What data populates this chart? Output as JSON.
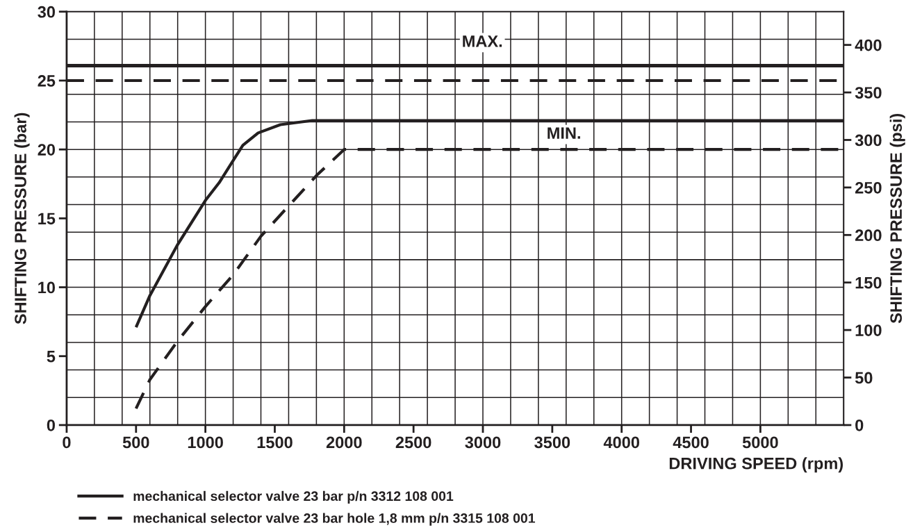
{
  "chart_data": {
    "type": "line",
    "xlabel": "DRIVING SPEED (rpm)",
    "ylabel": "SHIFTING PRESSURE (bar)",
    "y2label": "SHIFTING PRESSURE (psi)",
    "xlim": [
      0,
      5600
    ],
    "xticks": [
      0,
      500,
      1000,
      1500,
      2000,
      2500,
      3000,
      3500,
      4000,
      4500,
      5000,
      {
        "value": 200,
        "label": null
      },
      {
        "value": 400,
        "label": null
      },
      {
        "value": 600,
        "label": null
      },
      {
        "value": 800,
        "label": null
      },
      {
        "value": 1200,
        "label": null
      },
      {
        "value": 1400,
        "label": null
      },
      {
        "value": 1600,
        "label": null
      },
      {
        "value": 1800,
        "label": null
      },
      {
        "value": 2200,
        "label": null
      },
      {
        "value": 2400,
        "label": null
      },
      {
        "value": 2600,
        "label": null
      },
      {
        "value": 2800,
        "label": null
      },
      {
        "value": 3200,
        "label": null
      },
      {
        "value": 3400,
        "label": null
      },
      {
        "value": 3600,
        "label": null
      },
      {
        "value": 3800,
        "label": null
      },
      {
        "value": 4200,
        "label": null
      },
      {
        "value": 4400,
        "label": null
      },
      {
        "value": 4600,
        "label": null
      },
      {
        "value": 4800,
        "label": null
      },
      {
        "value": 5200,
        "label": null
      },
      {
        "value": 5400,
        "label": null
      }
    ],
    "ylim": [
      0,
      30
    ],
    "yticks": [
      0,
      5,
      10,
      15,
      20,
      25,
      30,
      {
        "value": 2,
        "label": null
      },
      {
        "value": 4,
        "label": null
      },
      {
        "value": 6,
        "label": null
      },
      {
        "value": 8,
        "label": null
      },
      {
        "value": 12,
        "label": null
      },
      {
        "value": 14,
        "label": null
      },
      {
        "value": 16,
        "label": null
      },
      {
        "value": 18,
        "label": null
      },
      {
        "value": 22,
        "label": null
      },
      {
        "value": 24,
        "label": null
      },
      {
        "value": 26,
        "label": null
      },
      {
        "value": 28,
        "label": null
      }
    ],
    "y2lim": [
      0,
      435
    ],
    "y2ticks": [
      0,
      50,
      100,
      150,
      200,
      250,
      300,
      350,
      400
    ],
    "grid": true,
    "legend": "bottom",
    "marker": "none",
    "series": [
      {
        "name": "mechanical selector valve 23 bar p/n 3312 108 001",
        "color": "#231f20",
        "line_style": "solid",
        "x": [
          500,
          600,
          800,
          1000,
          1100,
          1200,
          1270,
          1380,
          1540,
          1770,
          2000,
          5600
        ],
        "values": [
          7.1,
          9.4,
          13.1,
          16.3,
          17.6,
          19.2,
          20.3,
          21.2,
          21.8,
          22.1,
          22.1,
          22.1
        ]
      },
      {
        "name": "mechanical selector valve 23 bar hole 1,8 mm p/n 3315 108 001",
        "color": "#231f20",
        "line_style": "dashed",
        "x": [
          500,
          600,
          800,
          1000,
          1200,
          1400,
          1600,
          1800,
          2000,
          5600
        ],
        "values": [
          1.2,
          3.3,
          6.1,
          8.6,
          10.9,
          13.7,
          15.9,
          18.1,
          20,
          20
        ]
      }
    ],
    "ref_lines": [
      {
        "axis": "y",
        "value": 26.1,
        "color": "#231f20",
        "line_style": "solid"
      },
      {
        "axis": "y",
        "value": 25,
        "color": "#231f20",
        "line_style": "dashed"
      }
    ],
    "annotations": [
      "MAX.",
      "MIN."
    ]
  }
}
